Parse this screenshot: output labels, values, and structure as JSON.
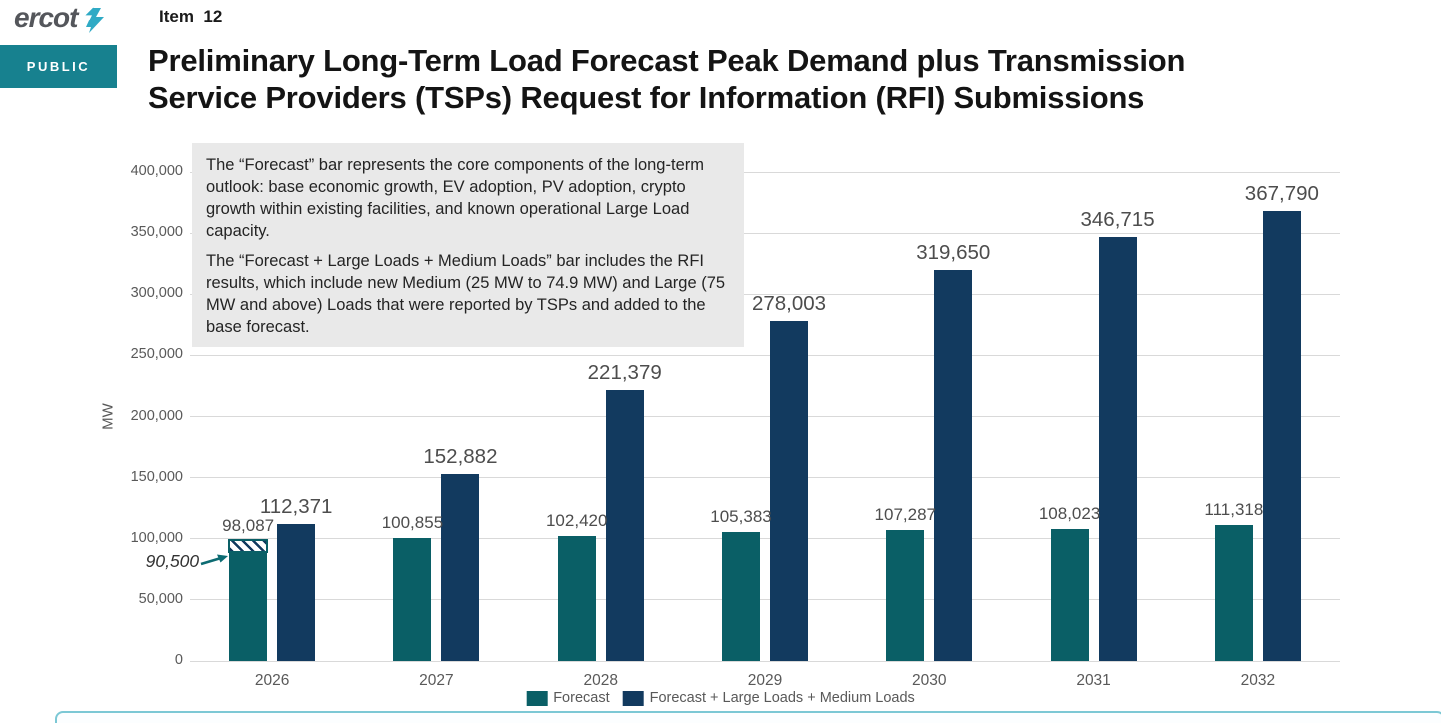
{
  "header": {
    "logo_text": "ercot",
    "item_label": "Item  12",
    "public_badge": "PUBLIC",
    "title_line1": "Preliminary Long-Term Load Forecast Peak Demand plus Transmission",
    "title_line2": "Service Providers (TSPs) Request for Information (RFI) Submissions"
  },
  "annotation_box": {
    "paragraph1": "The “Forecast” bar represents the core components of the long-term outlook: base economic growth, EV adoption, PV adoption, crypto growth within existing facilities, and known operational Large Load capacity.",
    "paragraph2": "The “Forecast + Large Loads + Medium Loads” bar includes the RFI results, which include new Medium (25 MW to 74.9 MW) and Large (75 MW and above) Loads that were reported by TSPs and added to the base forecast."
  },
  "chart_data": {
    "type": "bar",
    "title": "",
    "xlabel": "",
    "ylabel": "MW",
    "ylim": [
      0,
      400000
    ],
    "ytick_step": 50000,
    "yticks": [
      "0",
      "50,000",
      "100,000",
      "150,000",
      "200,000",
      "250,000",
      "300,000",
      "350,000",
      "400,000"
    ],
    "grid": "horizontal",
    "legend_position": "bottom",
    "categories": [
      "2026",
      "2027",
      "2028",
      "2029",
      "2030",
      "2031",
      "2032"
    ],
    "series": [
      {
        "name": "Forecast",
        "color": "#0A5F66",
        "values": [
          98087,
          100855,
          102420,
          105383,
          107287,
          108023,
          111318
        ]
      },
      {
        "name": "Forecast + Large Loads + Medium Loads",
        "color": "#123A5F",
        "values": [
          112371,
          152882,
          221379,
          278003,
          319650,
          346715,
          367790
        ]
      }
    ],
    "annotation": {
      "label": "90,500",
      "value": 90500,
      "target": "2026 Forecast bar — hatched segment above 90,500 up to 98,087"
    }
  },
  "colors": {
    "accent_teal": "#17818F",
    "bar_teal": "#0A5F66",
    "bar_navy": "#123A5F",
    "bottom_border": "#7CC8D5",
    "arrow": "#0C6B72"
  }
}
